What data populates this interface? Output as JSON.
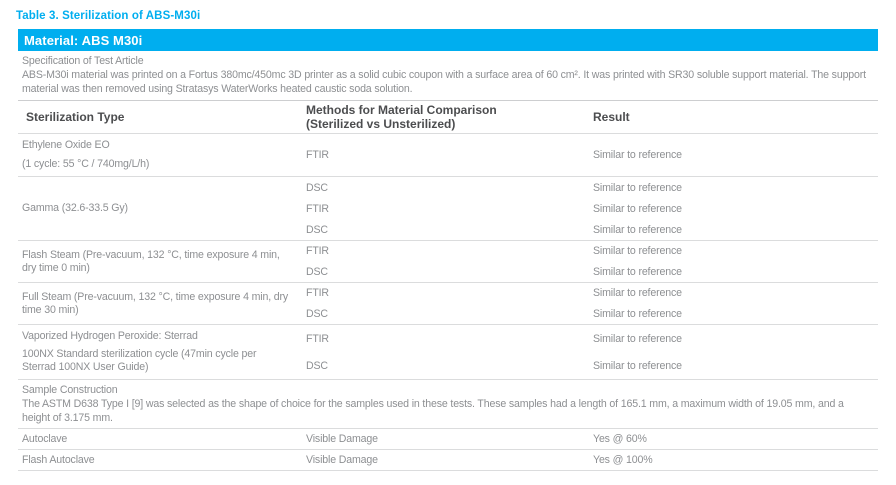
{
  "page": {
    "title": "Table 3. Sterilization of ABS-M30i",
    "material_header": "Material: ABS M30i"
  },
  "spec": {
    "heading": "Specification of Test Article",
    "body": "ABS-M30i material was printed on a Fortus 380mc/450mc 3D printer as a solid cubic coupon with a surface area of 60 cm². It was printed with SR30 soluble support material. The support material was then removed using Stratasys WaterWorks heated caustic soda solution."
  },
  "columns": {
    "type": "Sterilization Type",
    "methods_line1": "Methods for Material Comparison",
    "methods_line2": "(Sterilized vs Unsterilized)",
    "result": "Result"
  },
  "groups": [
    {
      "label": [
        "Ethylene Oxide EO",
        "(1 cycle: 55 °C / 740mg/L/h)"
      ],
      "methods": [
        {
          "method": "FTIR",
          "result": "Similar to reference"
        }
      ]
    },
    {
      "label": [
        "Gamma (32.6-33.5 Gy)"
      ],
      "methods": [
        {
          "method": "DSC",
          "result": "Similar to reference"
        },
        {
          "method": "FTIR",
          "result": "Similar to reference"
        },
        {
          "method": "DSC",
          "result": "Similar to reference"
        }
      ]
    },
    {
      "label": [
        "Flash Steam (Pre-vacuum, 132 °C, time exposure 4 min, dry time 0 min)"
      ],
      "methods": [
        {
          "method": "FTIR",
          "result": "Similar to reference"
        },
        {
          "method": "DSC",
          "result": "Similar to reference"
        }
      ]
    },
    {
      "label": [
        "Full Steam (Pre-vacuum, 132 °C, time exposure 4 min, dry time 30 min)"
      ],
      "methods": [
        {
          "method": "FTIR",
          "result": "Similar to reference"
        },
        {
          "method": "DSC",
          "result": "Similar to reference"
        }
      ]
    },
    {
      "label": [
        "Vaporized Hydrogen Peroxide: Sterrad",
        "100NX Standard sterilization cycle (47min cycle per Sterrad 100NX User Guide)"
      ],
      "methods": [
        {
          "method": "FTIR",
          "result": "Similar to reference"
        },
        {
          "method": "DSC",
          "result": "Similar to reference"
        }
      ]
    }
  ],
  "sample_construction": {
    "heading": "Sample Construction",
    "body": "The ASTM D638 Type I [9] was selected as the shape of choice for the samples used in these tests. These samples had a length of 165.1 mm, a maximum width of 19.05 mm, and a height of 3.175 mm."
  },
  "damage_rows": [
    {
      "type": "Autoclave",
      "method": "Visible Damage",
      "result": "Yes @ 60%"
    },
    {
      "type": "Flash Autoclave",
      "method": "Visible Damage",
      "result": "Yes @ 100%"
    }
  ],
  "colors": {
    "accent": "#00AEEF",
    "heading_text": "#4C4D4F",
    "body_text": "#8D8F92",
    "line": "#DBDCDD"
  }
}
